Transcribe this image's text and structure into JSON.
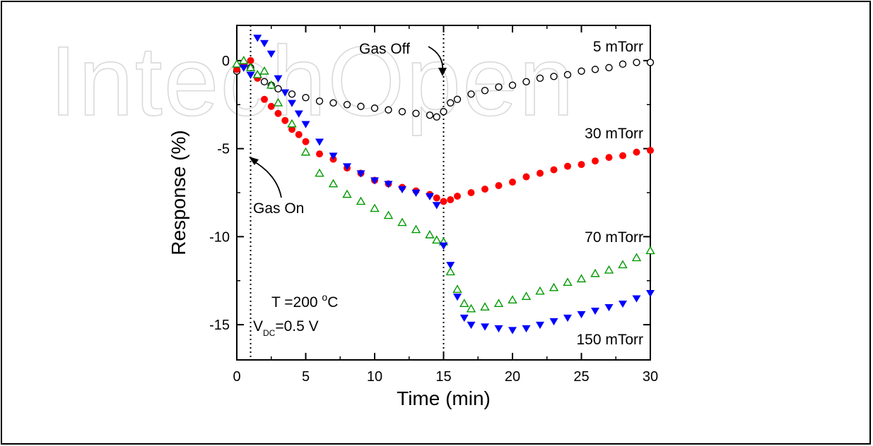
{
  "watermark": "IntechOpen",
  "chart_data": {
    "type": "scatter",
    "xlabel": "Time (min)",
    "ylabel": "Response (%)",
    "xlim": [
      0,
      30
    ],
    "ylim": [
      -17,
      2
    ],
    "xticks": [
      0,
      5,
      10,
      15,
      20,
      25,
      30
    ],
    "yticks": [
      0,
      -5,
      -10,
      -15
    ],
    "grid": false,
    "vlines": [
      1,
      15
    ],
    "annotations": {
      "gas_on": "Gas On",
      "gas_off": "Gas Off",
      "temp_prefix": "T =200 ",
      "temp_sup": "o",
      "temp_suffix": "C",
      "vdc_main": "V",
      "vdc_sub": "DC",
      "vdc_value": "=0.5 V"
    },
    "series": [
      {
        "name": "5 mTorr",
        "marker": "open-circle",
        "color": "#000000",
        "x": [
          0,
          0.5,
          1,
          1.5,
          2,
          2.5,
          3,
          4,
          5,
          6,
          7,
          8,
          9,
          10,
          11,
          12,
          13,
          14,
          14.5,
          15,
          15.5,
          16,
          17,
          18,
          19,
          20,
          21,
          22,
          23,
          24,
          25,
          26,
          27,
          28,
          29,
          30
        ],
        "y": [
          -0.6,
          -0.2,
          -0.4,
          -0.9,
          -1.2,
          -1.4,
          -1.6,
          -1.9,
          -2.1,
          -2.3,
          -2.4,
          -2.5,
          -2.6,
          -2.7,
          -2.8,
          -2.9,
          -3.0,
          -3.1,
          -3.2,
          -2.9,
          -2.4,
          -2.2,
          -1.9,
          -1.7,
          -1.5,
          -1.4,
          -1.2,
          -1.0,
          -0.9,
          -0.8,
          -0.6,
          -0.5,
          -0.4,
          -0.2,
          -0.1,
          -0.1
        ]
      },
      {
        "name": "30 mTorr",
        "marker": "filled-circle",
        "color": "#ff0000",
        "x": [
          0,
          0.5,
          1,
          1.5,
          2,
          2.5,
          3,
          3.5,
          4,
          4.5,
          5,
          6,
          7,
          8,
          9,
          10,
          11,
          12,
          13,
          14,
          14.5,
          15,
          15.5,
          16,
          17,
          18,
          19,
          20,
          21,
          22,
          23,
          24,
          25,
          26,
          27,
          28,
          29,
          30
        ],
        "y": [
          -0.5,
          -0.2,
          0.0,
          -1.0,
          -2.2,
          -2.6,
          -3.0,
          -3.4,
          -3.9,
          -4.2,
          -4.6,
          -5.3,
          -5.6,
          -6.1,
          -6.4,
          -6.8,
          -7.0,
          -7.2,
          -7.4,
          -7.6,
          -7.8,
          -8.0,
          -7.9,
          -7.7,
          -7.5,
          -7.3,
          -7.1,
          -6.9,
          -6.6,
          -6.4,
          -6.2,
          -6.0,
          -5.9,
          -5.7,
          -5.5,
          -5.4,
          -5.2,
          -5.1
        ]
      },
      {
        "name": "70 mTorr",
        "marker": "open-triangle",
        "color": "#009900",
        "x": [
          0,
          0.5,
          1,
          1.5,
          2,
          2.5,
          3,
          4,
          5,
          6,
          7,
          8,
          9,
          10,
          11,
          12,
          13,
          14,
          14.5,
          15,
          15.5,
          16,
          16.5,
          17,
          18,
          19,
          20,
          21,
          22,
          23,
          24,
          25,
          26,
          27,
          28,
          29,
          30
        ],
        "y": [
          -0.2,
          0.0,
          -0.4,
          -0.8,
          -0.6,
          -1.4,
          -2.4,
          -3.6,
          -5.2,
          -6.4,
          -7.0,
          -7.6,
          -8.0,
          -8.4,
          -8.8,
          -9.2,
          -9.6,
          -9.9,
          -10.2,
          -10.3,
          -12.0,
          -13.0,
          -13.8,
          -14.1,
          -14.0,
          -13.8,
          -13.6,
          -13.4,
          -13.1,
          -12.9,
          -12.6,
          -12.4,
          -12.1,
          -11.9,
          -11.6,
          -11.2,
          -10.8
        ]
      },
      {
        "name": "150 mTorr",
        "marker": "filled-triangle-down",
        "color": "#0000ff",
        "x": [
          0.5,
          1,
          1.5,
          2,
          2.5,
          3,
          3.5,
          4,
          4.5,
          5,
          6,
          7,
          8,
          9,
          10,
          11,
          12,
          13,
          14,
          14.5,
          15,
          15.5,
          16,
          16.5,
          17,
          18,
          19,
          20,
          21,
          22,
          23,
          24,
          25,
          26,
          27,
          28,
          29,
          30
        ],
        "y": [
          -0.4,
          -0.8,
          1.3,
          1.0,
          0.4,
          -1.0,
          -1.8,
          -2.4,
          -3.0,
          -3.6,
          -4.6,
          -5.4,
          -6.0,
          -6.4,
          -6.8,
          -7.0,
          -7.3,
          -7.5,
          -7.7,
          -8.2,
          -10.5,
          -11.6,
          -13.4,
          -14.6,
          -15.0,
          -15.1,
          -15.2,
          -15.3,
          -15.2,
          -15.0,
          -14.8,
          -14.6,
          -14.4,
          -14.2,
          -14.0,
          -13.8,
          -13.5,
          -13.2
        ]
      }
    ]
  }
}
